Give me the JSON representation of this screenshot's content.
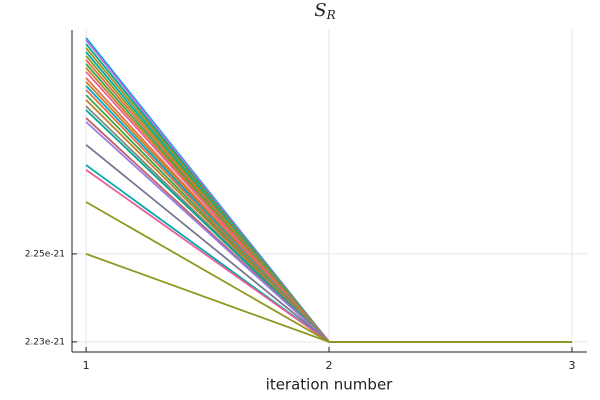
{
  "chart_data": {
    "type": "line",
    "title": "S",
    "title_subscript": "R",
    "xlabel": "iteration number",
    "x": [
      1,
      2,
      3
    ],
    "xlim": [
      0.942,
      3.062
    ],
    "xticks": [
      1,
      2,
      3
    ],
    "ylim": [
      2.2277e-21,
      2.3009e-21
    ],
    "yticks": [
      {
        "value": 2.23e-21,
        "label": "2.23e-21"
      },
      {
        "value": 2.25e-21,
        "label": "2.25e-21"
      }
    ],
    "grid": true,
    "series": [
      {
        "color": "#009afa",
        "values": [
          2.2991e-21,
          2.23e-21,
          2.23e-21
        ]
      },
      {
        "color": "#c371d2",
        "values": [
          2.2986e-21,
          2.23e-21,
          2.23e-21
        ]
      },
      {
        "color": "#00a98d",
        "values": [
          2.2977e-21,
          2.23e-21,
          2.23e-21
        ]
      },
      {
        "color": "#ac8e18",
        "values": [
          2.2968e-21,
          2.23e-21,
          2.23e-21
        ]
      },
      {
        "color": "#00aaae",
        "values": [
          2.2959e-21,
          2.23e-21,
          2.23e-21
        ]
      },
      {
        "color": "#8e971e",
        "values": [
          2.295e-21,
          2.23e-21,
          2.23e-21
        ]
      },
      {
        "color": "#e36f47",
        "values": [
          2.2941e-21,
          2.23e-21,
          2.23e-21
        ]
      },
      {
        "color": "#3ea44e",
        "values": [
          2.2932e-21,
          2.23e-21,
          2.23e-21
        ]
      },
      {
        "color": "#c68225",
        "values": [
          2.2923e-21,
          2.23e-21,
          2.23e-21
        ]
      },
      {
        "color": "#ed5e93",
        "values": [
          2.2914e-21,
          2.23e-21,
          2.23e-21
        ]
      },
      {
        "color": "#e36f47",
        "values": [
          2.29e-21,
          2.23e-21,
          2.23e-21
        ]
      },
      {
        "color": "#c68225",
        "values": [
          2.2891e-21,
          2.23e-21,
          2.23e-21
        ]
      },
      {
        "color": "#00a9cd",
        "values": [
          2.2882e-21,
          2.23e-21,
          2.23e-21
        ]
      },
      {
        "color": "#e36f47",
        "values": [
          2.2873e-21,
          2.23e-21,
          2.23e-21
        ]
      },
      {
        "color": "#3ea44e",
        "values": [
          2.2861e-21,
          2.23e-21,
          2.23e-21
        ]
      },
      {
        "color": "#c68225",
        "values": [
          2.285e-21,
          2.23e-21,
          2.23e-21
        ]
      },
      {
        "color": "#868686",
        "values": [
          2.2836e-21,
          2.23e-21,
          2.23e-21
        ]
      },
      {
        "color": "#00a98d",
        "values": [
          2.2827e-21,
          2.23e-21,
          2.23e-21
        ]
      },
      {
        "color": "#c06060",
        "values": [
          2.2809e-21,
          2.23e-21,
          2.23e-21
        ]
      },
      {
        "color": "#9b7fe9",
        "values": [
          2.28e-21,
          2.23e-21,
          2.23e-21
        ]
      },
      {
        "color": "#787893",
        "values": [
          2.2748e-21,
          2.23e-21,
          2.23e-21
        ]
      },
      {
        "color": "#00aaae",
        "values": [
          2.2702e-21,
          2.23e-21,
          2.23e-21
        ]
      },
      {
        "color": "#ed5e93",
        "values": [
          2.2691e-21,
          2.23e-21,
          2.23e-21
        ]
      },
      {
        "color": "#8e971e",
        "values": [
          2.2618e-21,
          2.23e-21,
          2.23e-21
        ]
      },
      {
        "color": "#8e971e",
        "values": [
          2.25e-21,
          2.23e-21,
          2.23e-21
        ]
      }
    ]
  }
}
